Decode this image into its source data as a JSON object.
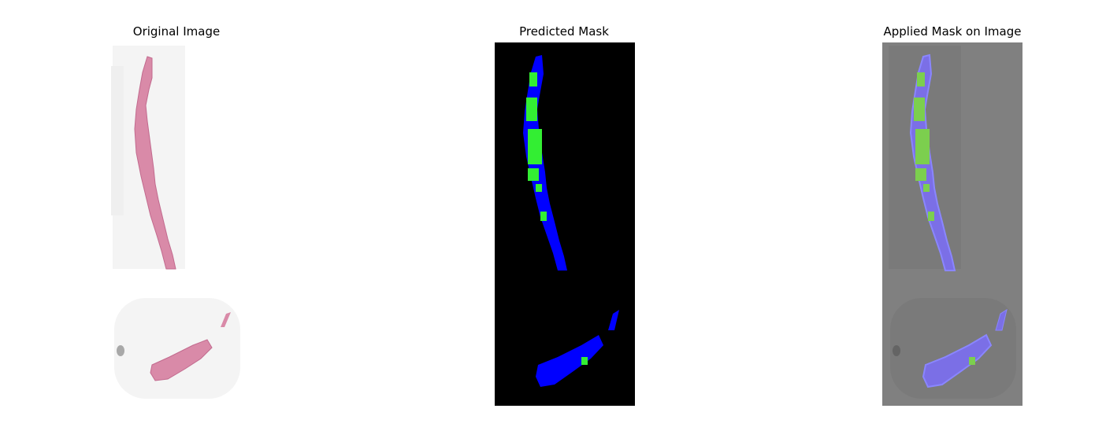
{
  "figure": {
    "panels": [
      {
        "title": "Original Image"
      },
      {
        "title": "Predicted Mask"
      },
      {
        "title": "Applied Mask on Image"
      }
    ]
  },
  "colors": {
    "tissue_pink": "#d98aa8",
    "mask_background": "#000000",
    "mask_tissue": "#0000ff",
    "mask_tumor": "#33ee33",
    "overlay_background": "#808080",
    "overlay_tissue": "#7b6fe6",
    "overlay_tumor": "#7ccf4e"
  }
}
